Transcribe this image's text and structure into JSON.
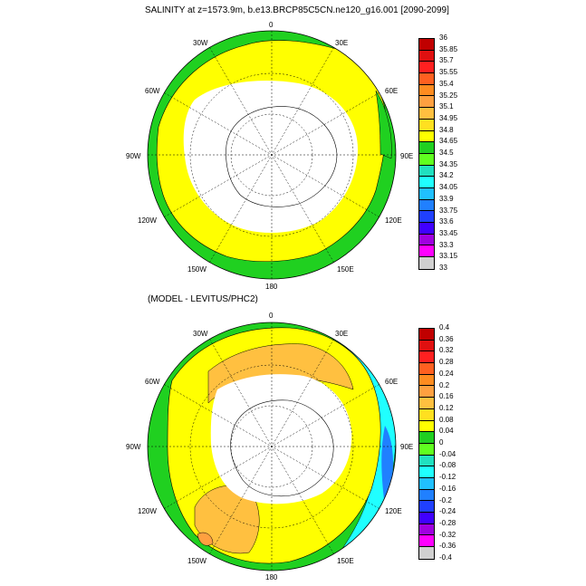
{
  "panel1": {
    "title": "SALINITY at z=1573.9m, b.e13.BRCP85C5CN.ne120_g16.001 [2090-2099]",
    "colorbar": {
      "labels": [
        "36",
        "35.85",
        "35.7",
        "35.55",
        "35.4",
        "35.25",
        "35.1",
        "34.95",
        "34.8",
        "34.65",
        "34.5",
        "34.35",
        "34.2",
        "34.05",
        "33.9",
        "33.75",
        "33.6",
        "33.45",
        "33.3",
        "33.15",
        "33"
      ],
      "colors": [
        "#c00000",
        "#e01010",
        "#ff2020",
        "#ff6020",
        "#ff8c20",
        "#ffa040",
        "#ffc040",
        "#ffe020",
        "#ffff00",
        "#20d020",
        "#60ff20",
        "#20e0c0",
        "#20ffff",
        "#20c0ff",
        "#2080ff",
        "#2040ff",
        "#4000ff",
        "#a000e0",
        "#ff00ff",
        "#d0d0d0",
        "#808080"
      ]
    }
  },
  "panel2": {
    "title": "(MODEL - LEVITUS/PHC2)",
    "colorbar": {
      "labels": [
        "0.4",
        "0.36",
        "0.32",
        "0.28",
        "0.24",
        "0.2",
        "0.16",
        "0.12",
        "0.08",
        "0.04",
        "0",
        "-0.04",
        "-0.08",
        "-0.12",
        "-0.16",
        "-0.2",
        "-0.24",
        "-0.28",
        "-0.32",
        "-0.36",
        "-0.4"
      ],
      "colors": [
        "#c00000",
        "#e01010",
        "#ff2020",
        "#ff6020",
        "#ff8c20",
        "#ffa040",
        "#ffc040",
        "#ffe020",
        "#ffff00",
        "#20d020",
        "#60ff20",
        "#20e0c0",
        "#20ffff",
        "#20c0ff",
        "#2080ff",
        "#2040ff",
        "#4000ff",
        "#a000e0",
        "#ff00ff",
        "#d0d0d0",
        "#808080"
      ]
    }
  },
  "lon_labels": {
    "top": "0",
    "l30w": "30W",
    "l30e": "30E",
    "l60w": "60W",
    "l60e": "60E",
    "l90w": "90W",
    "l90e": "90E",
    "l120w": "120W",
    "l120e": "120E",
    "l150w": "150W",
    "l150e": "150E",
    "bottom": "180"
  }
}
